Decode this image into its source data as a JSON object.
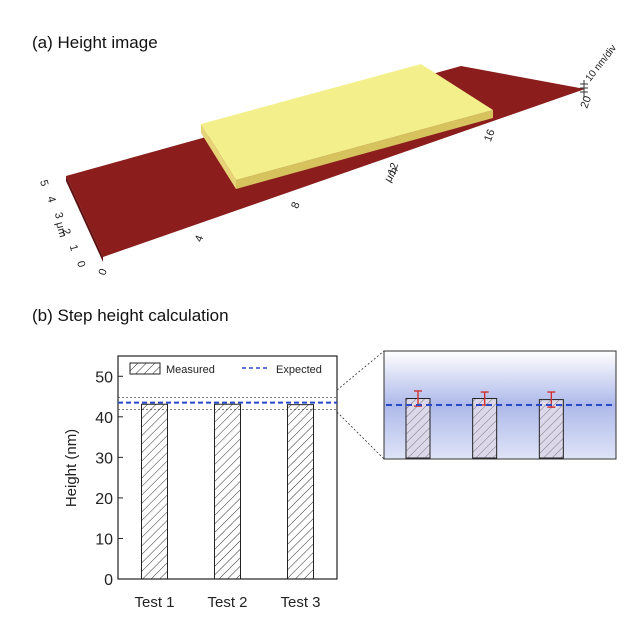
{
  "panel_a": {
    "title": "(a) Height image",
    "x_unit": "μm",
    "y_unit": "μm",
    "z_scale": "10 nm/div",
    "x_ticks": [
      "0",
      "4",
      "8",
      "12",
      "16",
      "20"
    ],
    "y_ticks": [
      "0",
      "1",
      "2",
      "3",
      "4",
      "5"
    ],
    "colors": {
      "substrate": "#8b1d1d",
      "substrate_dark": "#5e1010",
      "step_top": "#f3f08c",
      "step_side": "#e8d478"
    }
  },
  "panel_b": {
    "title": "(b) Step height calculation"
  },
  "chart_data": {
    "type": "bar",
    "categories": [
      "Test 1",
      "Test 2",
      "Test 3"
    ],
    "series": [
      {
        "name": "Measured",
        "values": [
          43.1,
          43.1,
          43.0
        ],
        "error": [
          0.7,
          0.6,
          0.7
        ],
        "pattern": "hatched"
      }
    ],
    "reference_lines": [
      {
        "name": "Expected",
        "value": 43.5,
        "style": "dashed",
        "color": "#2a49c8"
      }
    ],
    "band": [
      41.8,
      44.8
    ],
    "ylabel": "Height (nm)",
    "ylim": [
      0,
      55
    ],
    "yticks": [
      "0",
      "10",
      "20",
      "30",
      "40",
      "50"
    ],
    "legend": {
      "placement": "top",
      "entries": [
        "Measured",
        "Expected"
      ]
    },
    "inset": {
      "description_none": "",
      "bar_color": "#dcd8ea",
      "error_color": "#d03030",
      "band_color": "#aab6e6"
    }
  }
}
